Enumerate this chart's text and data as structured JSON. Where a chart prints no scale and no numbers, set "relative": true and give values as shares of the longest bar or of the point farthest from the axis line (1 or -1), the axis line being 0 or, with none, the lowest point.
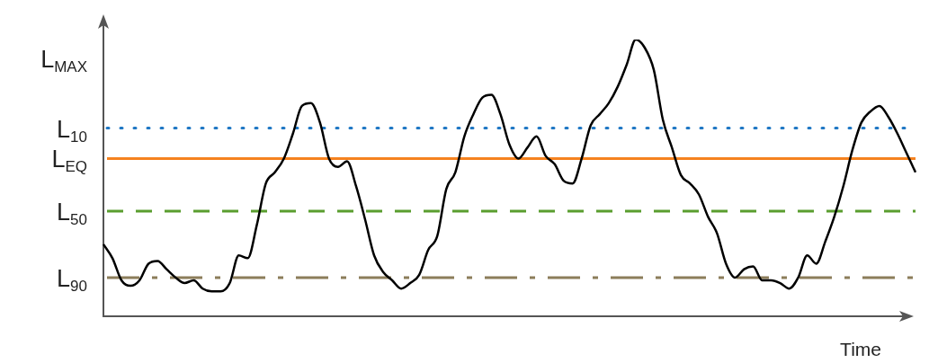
{
  "chart_data": {
    "type": "line",
    "xlabel": "Time",
    "relative": true,
    "legend": false,
    "grid": false,
    "marker": "none",
    "line_style": "solid",
    "categories": [
      null,
      null,
      null,
      null,
      null,
      null,
      null,
      null,
      null,
      null,
      null,
      null,
      null,
      null,
      null,
      null,
      null,
      null,
      null,
      null,
      null,
      null,
      null,
      null,
      null,
      null,
      null,
      null,
      null,
      null,
      null,
      null,
      null,
      null,
      null,
      null,
      null,
      null,
      null,
      null,
      null,
      null,
      null,
      null,
      null,
      null,
      null,
      null,
      null,
      null,
      null,
      null,
      null,
      null,
      null,
      null,
      null,
      null,
      null,
      null,
      null,
      null,
      null,
      null,
      null,
      null,
      null,
      null,
      null,
      null,
      null,
      null,
      null,
      null,
      null,
      null,
      null,
      null,
      null,
      null,
      null,
      null,
      null,
      null,
      null,
      null,
      null,
      null,
      null,
      null,
      null
    ],
    "series": [
      {
        "color": "#000000",
        "values": [
          0.26,
          0.21,
          0.13,
          0.11,
          0.13,
          0.19,
          0.2,
          0.17,
          0.14,
          0.12,
          0.13,
          0.1,
          0.09,
          0.09,
          0.12,
          0.22,
          0.21,
          0.33,
          0.48,
          0.52,
          0.57,
          0.66,
          0.76,
          0.77,
          0.7,
          0.57,
          0.54,
          0.56,
          0.47,
          0.35,
          0.22,
          0.16,
          0.13,
          0.1,
          0.12,
          0.15,
          0.24,
          0.29,
          0.46,
          0.52,
          0.65,
          0.73,
          0.79,
          0.8,
          0.73,
          0.62,
          0.57,
          0.61,
          0.65,
          0.58,
          0.55,
          0.49,
          0.48,
          0.57,
          0.69,
          0.73,
          0.77,
          0.83,
          0.91,
          1,
          0.97,
          0.89,
          0.71,
          0.61,
          0.51,
          0.48,
          0.44,
          0.36,
          0.3,
          0.19,
          0.14,
          0.17,
          0.18,
          0.13,
          0.13,
          0.12,
          0.1,
          0.14,
          0.22,
          0.19,
          0.27,
          0.36,
          0.47,
          0.6,
          0.7,
          0.74,
          0.76,
          0.72,
          0.66,
          0.59,
          0.52
        ]
      }
    ],
    "ref_lines": [
      {
        "axis": "y",
        "value": 0.68,
        "label": "L$_{10}$",
        "color": "#1f77c4",
        "line_style": "dotted"
      },
      {
        "axis": "y",
        "value": 0.57,
        "label": "L$_{EQ}$",
        "color": "#f5821f",
        "line_style": "solid"
      },
      {
        "axis": "y",
        "value": 0.38,
        "label": "L$_{50}$",
        "color": "#5a9e2f",
        "line_style": "dashed"
      },
      {
        "axis": "y",
        "value": 0.14,
        "label": "L$_{90}$",
        "color": "#8c7d5a",
        "line_style": "dashdot"
      }
    ],
    "annotations": [
      "L$_{MAX}$"
    ]
  }
}
